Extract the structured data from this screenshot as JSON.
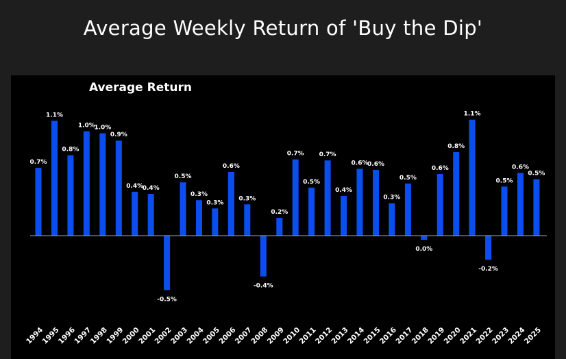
{
  "page": {
    "title": "Average Weekly Return of 'Buy the Dip'"
  },
  "colors": {
    "background": "#1e1e1e",
    "panel": "#000000",
    "bar": "#0a4fee",
    "text": "#ffffff",
    "zero_line": "#9aa4b6"
  },
  "chart_data": {
    "type": "bar",
    "title": "Average Return",
    "xlabel": "",
    "ylabel": "",
    "ylim": [
      -0.6,
      1.1
    ],
    "grid": false,
    "categories": [
      "1994",
      "1995",
      "1996",
      "1997",
      "1998",
      "1999",
      "2000",
      "2001",
      "2002",
      "2003",
      "2004",
      "2005",
      "2006",
      "2007",
      "2008",
      "2009",
      "2010",
      "2011",
      "2012",
      "2013",
      "2014",
      "2015",
      "2016",
      "2017",
      "2018",
      "2019",
      "2020",
      "2021",
      "2022",
      "2023",
      "2024",
      "2025"
    ],
    "values": [
      0.65,
      1.1,
      0.77,
      1.0,
      0.98,
      0.91,
      0.42,
      0.4,
      -0.52,
      0.51,
      0.34,
      0.26,
      0.61,
      0.3,
      -0.39,
      0.17,
      0.73,
      0.46,
      0.72,
      0.38,
      0.64,
      0.63,
      0.31,
      0.5,
      -0.04,
      0.59,
      0.8,
      1.11,
      -0.23,
      0.47,
      0.6,
      0.54
    ],
    "labels": [
      "0.7%",
      "1.1%",
      "0.8%",
      "1.0%",
      "1.0%",
      "0.9%",
      "0.4%",
      "0.4%",
      "-0.5%",
      "0.5%",
      "0.3%",
      "0.3%",
      "0.6%",
      "0.3%",
      "-0.4%",
      "0.2%",
      "0.7%",
      "0.5%",
      "0.7%",
      "0.4%",
      "0.6%",
      "0.6%",
      "0.3%",
      "0.5%",
      "0.0%",
      "0.6%",
      "0.8%",
      "1.1%",
      "-0.2%",
      "0.5%",
      "0.6%",
      "0.5%"
    ]
  }
}
